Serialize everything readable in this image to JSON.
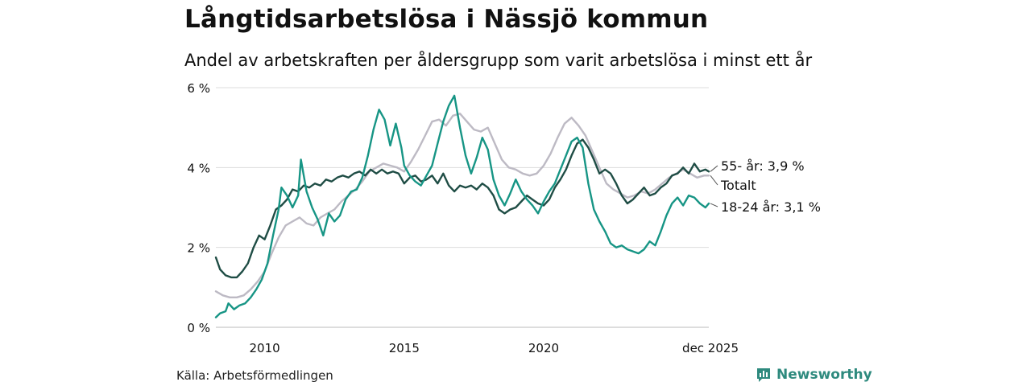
{
  "title": "Långtidsarbetslösa i Nässjö kommun",
  "subtitle": "Andel av arbetskraften per åldersgrupp som varit arbetslösa i minst ett år",
  "source": "Källa: Arbetsförmedlingen",
  "brand": "Newsworthy",
  "colors": {
    "total": "#bdbac4",
    "age55": "#1f4d45",
    "age18_24": "#179585",
    "grid": "#dddddd",
    "brand": "#2e8a7e"
  },
  "chart_data": {
    "type": "line",
    "title": "Långtidsarbetslösa i Nässjö kommun",
    "xlabel": "",
    "ylabel": "",
    "xlim": [
      2008.25,
      2025.92
    ],
    "ylim": [
      0,
      6
    ],
    "y_ticks": [
      0,
      2,
      4,
      6
    ],
    "y_tick_labels": [
      "0 %",
      "2 %",
      "4 %",
      "6 %"
    ],
    "x_ticks": [
      2010,
      2015,
      2020,
      2025.92
    ],
    "x_tick_labels": [
      "2010",
      "2015",
      "2020",
      "dec 2025"
    ],
    "grid": true,
    "series": [
      {
        "name": "Totalt",
        "key": "total",
        "end_label": "Totalt",
        "points": [
          [
            2008.25,
            0.9
          ],
          [
            2008.5,
            0.8
          ],
          [
            2008.75,
            0.75
          ],
          [
            2009.0,
            0.75
          ],
          [
            2009.25,
            0.8
          ],
          [
            2009.5,
            0.95
          ],
          [
            2009.75,
            1.15
          ],
          [
            2010.0,
            1.4
          ],
          [
            2010.25,
            1.85
          ],
          [
            2010.5,
            2.25
          ],
          [
            2010.75,
            2.55
          ],
          [
            2011.0,
            2.65
          ],
          [
            2011.25,
            2.75
          ],
          [
            2011.5,
            2.6
          ],
          [
            2011.75,
            2.55
          ],
          [
            2012.0,
            2.75
          ],
          [
            2012.25,
            2.85
          ],
          [
            2012.5,
            2.95
          ],
          [
            2012.75,
            3.15
          ],
          [
            2013.0,
            3.3
          ],
          [
            2013.25,
            3.45
          ],
          [
            2013.5,
            3.65
          ],
          [
            2013.75,
            3.9
          ],
          [
            2014.0,
            4.0
          ],
          [
            2014.25,
            4.1
          ],
          [
            2014.5,
            4.05
          ],
          [
            2014.75,
            4.0
          ],
          [
            2015.0,
            3.9
          ],
          [
            2015.25,
            4.15
          ],
          [
            2015.5,
            4.45
          ],
          [
            2015.75,
            4.8
          ],
          [
            2016.0,
            5.15
          ],
          [
            2016.25,
            5.2
          ],
          [
            2016.5,
            5.05
          ],
          [
            2016.75,
            5.3
          ],
          [
            2017.0,
            5.35
          ],
          [
            2017.25,
            5.15
          ],
          [
            2017.5,
            4.95
          ],
          [
            2017.75,
            4.9
          ],
          [
            2018.0,
            5.0
          ],
          [
            2018.25,
            4.6
          ],
          [
            2018.5,
            4.2
          ],
          [
            2018.75,
            4.0
          ],
          [
            2019.0,
            3.95
          ],
          [
            2019.25,
            3.85
          ],
          [
            2019.5,
            3.8
          ],
          [
            2019.75,
            3.85
          ],
          [
            2020.0,
            4.05
          ],
          [
            2020.25,
            4.35
          ],
          [
            2020.5,
            4.75
          ],
          [
            2020.75,
            5.1
          ],
          [
            2021.0,
            5.25
          ],
          [
            2021.25,
            5.05
          ],
          [
            2021.5,
            4.8
          ],
          [
            2021.75,
            4.4
          ],
          [
            2022.0,
            4.0
          ],
          [
            2022.25,
            3.6
          ],
          [
            2022.5,
            3.45
          ],
          [
            2022.75,
            3.35
          ],
          [
            2023.0,
            3.25
          ],
          [
            2023.25,
            3.3
          ],
          [
            2023.5,
            3.4
          ],
          [
            2023.75,
            3.35
          ],
          [
            2024.0,
            3.45
          ],
          [
            2024.25,
            3.6
          ],
          [
            2024.5,
            3.75
          ],
          [
            2024.75,
            3.85
          ],
          [
            2025.0,
            3.95
          ],
          [
            2025.25,
            3.85
          ],
          [
            2025.5,
            3.75
          ],
          [
            2025.75,
            3.8
          ],
          [
            2025.92,
            3.8
          ]
        ]
      },
      {
        "name": "55- år",
        "key": "age55",
        "end_label": "55- år: 3,9 %",
        "points": [
          [
            2008.25,
            1.75
          ],
          [
            2008.4,
            1.45
          ],
          [
            2008.6,
            1.3
          ],
          [
            2008.8,
            1.25
          ],
          [
            2009.0,
            1.25
          ],
          [
            2009.2,
            1.4
          ],
          [
            2009.4,
            1.6
          ],
          [
            2009.6,
            2.0
          ],
          [
            2009.8,
            2.3
          ],
          [
            2010.0,
            2.2
          ],
          [
            2010.2,
            2.55
          ],
          [
            2010.4,
            2.95
          ],
          [
            2010.6,
            3.05
          ],
          [
            2010.8,
            3.2
          ],
          [
            2011.0,
            3.45
          ],
          [
            2011.2,
            3.4
          ],
          [
            2011.4,
            3.55
          ],
          [
            2011.6,
            3.5
          ],
          [
            2011.8,
            3.6
          ],
          [
            2012.0,
            3.55
          ],
          [
            2012.2,
            3.7
          ],
          [
            2012.4,
            3.65
          ],
          [
            2012.6,
            3.75
          ],
          [
            2012.8,
            3.8
          ],
          [
            2013.0,
            3.75
          ],
          [
            2013.2,
            3.85
          ],
          [
            2013.4,
            3.9
          ],
          [
            2013.6,
            3.8
          ],
          [
            2013.8,
            3.95
          ],
          [
            2014.0,
            3.85
          ],
          [
            2014.2,
            3.95
          ],
          [
            2014.4,
            3.85
          ],
          [
            2014.6,
            3.9
          ],
          [
            2014.8,
            3.85
          ],
          [
            2015.0,
            3.6
          ],
          [
            2015.2,
            3.75
          ],
          [
            2015.4,
            3.8
          ],
          [
            2015.6,
            3.65
          ],
          [
            2015.8,
            3.7
          ],
          [
            2016.0,
            3.8
          ],
          [
            2016.2,
            3.6
          ],
          [
            2016.4,
            3.85
          ],
          [
            2016.6,
            3.55
          ],
          [
            2016.8,
            3.4
          ],
          [
            2017.0,
            3.55
          ],
          [
            2017.2,
            3.5
          ],
          [
            2017.4,
            3.55
          ],
          [
            2017.6,
            3.45
          ],
          [
            2017.8,
            3.6
          ],
          [
            2018.0,
            3.5
          ],
          [
            2018.2,
            3.3
          ],
          [
            2018.4,
            2.95
          ],
          [
            2018.6,
            2.85
          ],
          [
            2018.8,
            2.95
          ],
          [
            2019.0,
            3.0
          ],
          [
            2019.2,
            3.15
          ],
          [
            2019.4,
            3.3
          ],
          [
            2019.6,
            3.2
          ],
          [
            2019.8,
            3.1
          ],
          [
            2020.0,
            3.05
          ],
          [
            2020.2,
            3.2
          ],
          [
            2020.4,
            3.5
          ],
          [
            2020.6,
            3.7
          ],
          [
            2020.8,
            3.95
          ],
          [
            2021.0,
            4.3
          ],
          [
            2021.2,
            4.6
          ],
          [
            2021.4,
            4.7
          ],
          [
            2021.6,
            4.5
          ],
          [
            2021.8,
            4.2
          ],
          [
            2022.0,
            3.85
          ],
          [
            2022.2,
            3.95
          ],
          [
            2022.4,
            3.85
          ],
          [
            2022.6,
            3.6
          ],
          [
            2022.8,
            3.3
          ],
          [
            2023.0,
            3.1
          ],
          [
            2023.2,
            3.2
          ],
          [
            2023.4,
            3.35
          ],
          [
            2023.6,
            3.5
          ],
          [
            2023.8,
            3.3
          ],
          [
            2024.0,
            3.35
          ],
          [
            2024.2,
            3.5
          ],
          [
            2024.4,
            3.6
          ],
          [
            2024.6,
            3.8
          ],
          [
            2024.8,
            3.85
          ],
          [
            2025.0,
            4.0
          ],
          [
            2025.2,
            3.85
          ],
          [
            2025.4,
            4.1
          ],
          [
            2025.6,
            3.9
          ],
          [
            2025.8,
            3.95
          ],
          [
            2025.92,
            3.9
          ]
        ]
      },
      {
        "name": "18-24 år",
        "key": "age18_24",
        "end_label": "18-24 år: 3,1 %",
        "points": [
          [
            2008.25,
            0.25
          ],
          [
            2008.4,
            0.35
          ],
          [
            2008.6,
            0.4
          ],
          [
            2008.7,
            0.6
          ],
          [
            2008.9,
            0.45
          ],
          [
            2009.1,
            0.55
          ],
          [
            2009.3,
            0.6
          ],
          [
            2009.5,
            0.75
          ],
          [
            2009.7,
            0.95
          ],
          [
            2009.9,
            1.2
          ],
          [
            2010.1,
            1.6
          ],
          [
            2010.3,
            2.3
          ],
          [
            2010.5,
            2.95
          ],
          [
            2010.6,
            3.5
          ],
          [
            2010.8,
            3.3
          ],
          [
            2011.0,
            3.0
          ],
          [
            2011.2,
            3.3
          ],
          [
            2011.3,
            4.2
          ],
          [
            2011.5,
            3.4
          ],
          [
            2011.7,
            3.0
          ],
          [
            2011.9,
            2.7
          ],
          [
            2012.1,
            2.3
          ],
          [
            2012.3,
            2.85
          ],
          [
            2012.5,
            2.65
          ],
          [
            2012.7,
            2.8
          ],
          [
            2012.9,
            3.2
          ],
          [
            2013.1,
            3.4
          ],
          [
            2013.3,
            3.45
          ],
          [
            2013.5,
            3.75
          ],
          [
            2013.7,
            4.3
          ],
          [
            2013.9,
            4.95
          ],
          [
            2014.1,
            5.45
          ],
          [
            2014.3,
            5.2
          ],
          [
            2014.5,
            4.55
          ],
          [
            2014.7,
            5.1
          ],
          [
            2014.9,
            4.5
          ],
          [
            2015.0,
            4.05
          ],
          [
            2015.2,
            3.8
          ],
          [
            2015.4,
            3.65
          ],
          [
            2015.6,
            3.55
          ],
          [
            2015.8,
            3.8
          ],
          [
            2016.0,
            4.05
          ],
          [
            2016.2,
            4.6
          ],
          [
            2016.4,
            5.15
          ],
          [
            2016.6,
            5.55
          ],
          [
            2016.8,
            5.8
          ],
          [
            2017.0,
            5.0
          ],
          [
            2017.2,
            4.3
          ],
          [
            2017.4,
            3.85
          ],
          [
            2017.6,
            4.25
          ],
          [
            2017.8,
            4.75
          ],
          [
            2018.0,
            4.45
          ],
          [
            2018.2,
            3.7
          ],
          [
            2018.4,
            3.3
          ],
          [
            2018.6,
            3.05
          ],
          [
            2018.8,
            3.35
          ],
          [
            2019.0,
            3.7
          ],
          [
            2019.2,
            3.4
          ],
          [
            2019.4,
            3.2
          ],
          [
            2019.6,
            3.05
          ],
          [
            2019.8,
            2.85
          ],
          [
            2020.0,
            3.15
          ],
          [
            2020.2,
            3.4
          ],
          [
            2020.4,
            3.6
          ],
          [
            2020.6,
            3.95
          ],
          [
            2020.8,
            4.3
          ],
          [
            2021.0,
            4.65
          ],
          [
            2021.2,
            4.75
          ],
          [
            2021.4,
            4.5
          ],
          [
            2021.6,
            3.6
          ],
          [
            2021.8,
            2.95
          ],
          [
            2022.0,
            2.65
          ],
          [
            2022.2,
            2.4
          ],
          [
            2022.4,
            2.1
          ],
          [
            2022.6,
            2.0
          ],
          [
            2022.8,
            2.05
          ],
          [
            2023.0,
            1.95
          ],
          [
            2023.2,
            1.9
          ],
          [
            2023.4,
            1.85
          ],
          [
            2023.6,
            1.95
          ],
          [
            2023.8,
            2.15
          ],
          [
            2024.0,
            2.05
          ],
          [
            2024.2,
            2.4
          ],
          [
            2024.4,
            2.8
          ],
          [
            2024.6,
            3.1
          ],
          [
            2024.8,
            3.25
          ],
          [
            2025.0,
            3.05
          ],
          [
            2025.2,
            3.3
          ],
          [
            2025.4,
            3.25
          ],
          [
            2025.6,
            3.1
          ],
          [
            2025.8,
            3.0
          ],
          [
            2025.92,
            3.1
          ]
        ]
      }
    ]
  }
}
